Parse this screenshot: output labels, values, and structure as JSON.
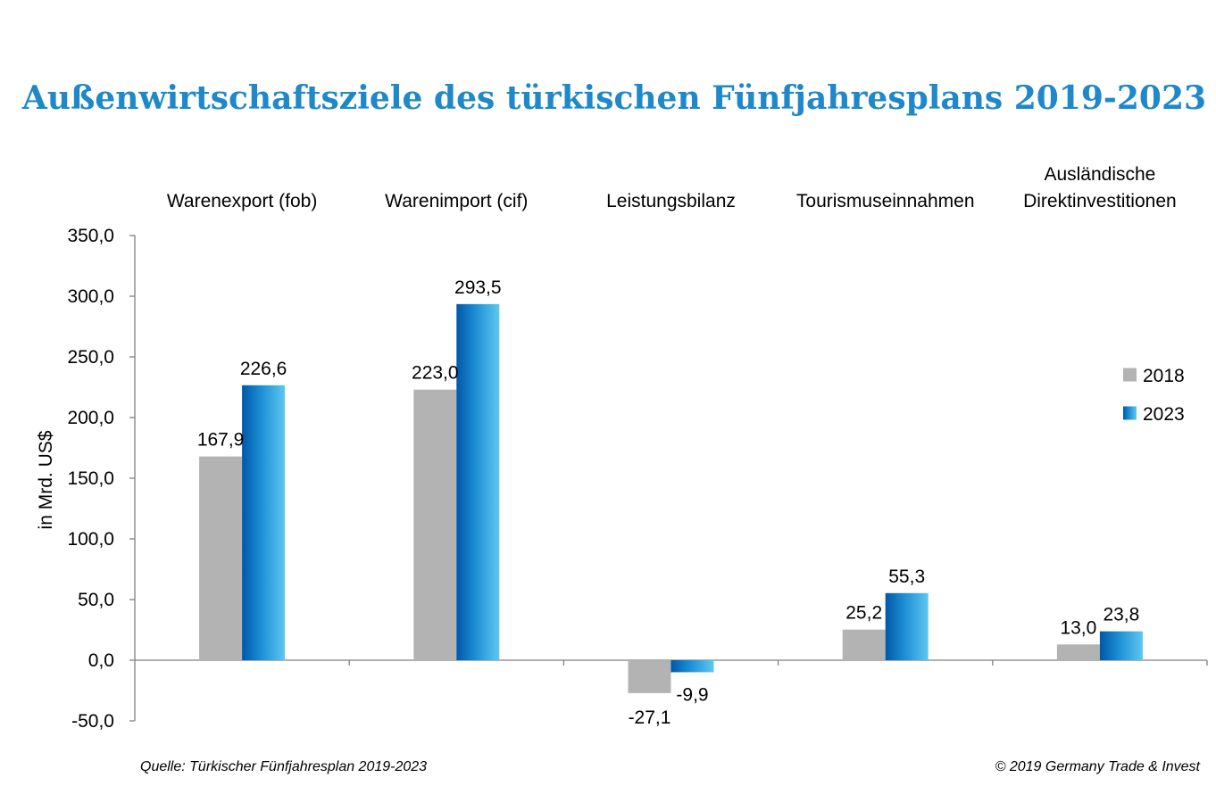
{
  "chart_data": {
    "type": "bar",
    "title": "Außenwirtschaftsziele des türkischen Fünfjahresplans 2019-2023",
    "ylabel": "in Mrd. US$",
    "xlabel": "",
    "ylim": [
      -50,
      350
    ],
    "ytick_step": 50,
    "yticks": [
      "350,0",
      "300,0",
      "250,0",
      "200,0",
      "150,0",
      "100,0",
      "50,0",
      "0,0",
      "-50,0"
    ],
    "categories": [
      [
        "Warenexport (fob)"
      ],
      [
        "Warenimport (cif)"
      ],
      [
        "Leistungsbilanz"
      ],
      [
        "Tourismuseinnahmen"
      ],
      [
        "Ausländische",
        "Direktinvestitionen"
      ]
    ],
    "series": [
      {
        "name": "2018",
        "color": "#b3b3b3",
        "values": [
          167.9,
          223.0,
          -27.1,
          25.2,
          13.0
        ],
        "labels": [
          "167,9",
          "223,0",
          "-27,1",
          "25,2",
          "13,0"
        ]
      },
      {
        "name": "2023",
        "color": "#1e8fd5",
        "values": [
          226.6,
          293.5,
          -9.9,
          55.3,
          23.8
        ],
        "labels": [
          "226,6",
          "293,5",
          "-9,9",
          "55,3",
          "23,8"
        ]
      }
    ],
    "grid": false,
    "legend_position": "right"
  },
  "footer": {
    "source": "Quelle: Türkischer Fünfjahresplan 2019-2023",
    "copyright": "© 2019 Germany Trade & Invest"
  }
}
